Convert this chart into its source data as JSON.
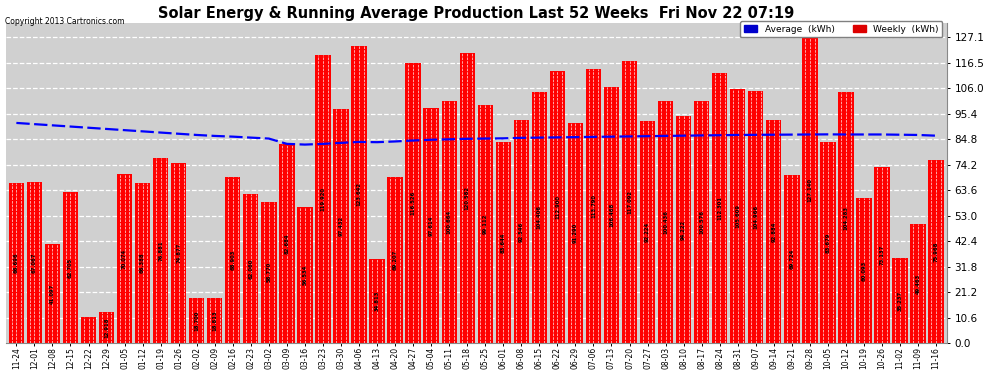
{
  "title": "Solar Energy & Running Average Production Last 52 Weeks  Fri Nov 22 07:19",
  "copyright": "Copyright 2013 Cartronics.com",
  "bar_color": "#ff0000",
  "avg_line_color": "#0000ff",
  "background_color": "#ffffff",
  "plot_bg_color": "#d0d0d0",
  "yticks": [
    0.0,
    10.6,
    21.2,
    31.8,
    42.4,
    53.0,
    63.6,
    74.2,
    84.8,
    95.4,
    106.0,
    116.5,
    127.1
  ],
  "xlabels": [
    "11-24",
    "12-01",
    "12-08",
    "12-15",
    "12-22",
    "12-29",
    "01-05",
    "01-12",
    "01-19",
    "01-26",
    "02-02",
    "02-09",
    "02-16",
    "02-23",
    "03-02",
    "03-09",
    "03-16",
    "03-23",
    "03-30",
    "04-06",
    "04-13",
    "04-20",
    "04-27",
    "05-04",
    "05-11",
    "05-18",
    "05-25",
    "06-01",
    "06-08",
    "06-15",
    "06-22",
    "06-29",
    "07-06",
    "07-13",
    "07-20",
    "07-27",
    "08-03",
    "08-10",
    "08-17",
    "08-24",
    "08-31",
    "09-07",
    "09-14",
    "09-21",
    "09-28",
    "10-05",
    "10-12",
    "10-19",
    "10-26",
    "11-02",
    "11-09",
    "11-16"
  ],
  "weekly_values": [
    66.696,
    67.067,
    41.097,
    62.705,
    10.671,
    12.918,
    70.074,
    66.388,
    76.881,
    74.877,
    18.7,
    18.813,
    68.903,
    62.06,
    58.77,
    82.684,
    56.534,
    119.92,
    97.432,
    123.642,
    34.813,
    69.207,
    116.526,
    97.614,
    100.664,
    120.582,
    99.112,
    83.644,
    92.546,
    104.406,
    112.9,
    91.29,
    113.79,
    106.468,
    117.092,
    92.224,
    100.436,
    94.222,
    100.576,
    112.301,
    105.609,
    104.966,
    92.884,
    69.724,
    127.14,
    83.679,
    104.283,
    60.093,
    73.137,
    35.237,
    49.463,
    75.968
  ],
  "avg_values": [
    91.5,
    91.0,
    90.5,
    90.0,
    89.5,
    89.0,
    88.5,
    88.0,
    87.5,
    87.0,
    86.5,
    86.1,
    85.8,
    85.4,
    85.0,
    82.8,
    82.5,
    82.8,
    83.2,
    83.6,
    83.5,
    83.8,
    84.2,
    84.5,
    84.7,
    84.9,
    85.0,
    85.1,
    85.3,
    85.4,
    85.5,
    85.6,
    85.7,
    85.8,
    85.9,
    86.0,
    86.1,
    86.2,
    86.3,
    86.4,
    86.5,
    86.55,
    86.6,
    86.65,
    86.7,
    86.75,
    86.7,
    86.7,
    86.7,
    86.6,
    86.5,
    86.2
  ],
  "legend_avg_label": "Average  (kWh)",
  "legend_weekly_label": "Weekly  (kWh)",
  "legend_avg_color": "#0000cc",
  "legend_weekly_color": "#dd0000"
}
